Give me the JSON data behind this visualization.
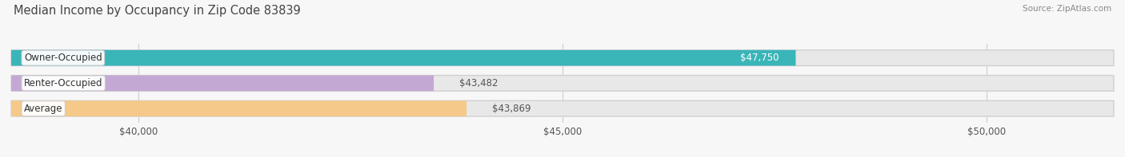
{
  "title": "Median Income by Occupancy in Zip Code 83839",
  "source": "Source: ZipAtlas.com",
  "categories": [
    "Owner-Occupied",
    "Renter-Occupied",
    "Average"
  ],
  "values": [
    47750,
    43482,
    43869
  ],
  "bar_colors": [
    "#3ab5b8",
    "#c4a8d4",
    "#f5c98a"
  ],
  "bar_bg_colors": [
    "#e8e8e8",
    "#e8e8e8",
    "#e8e8e8"
  ],
  "value_labels": [
    "$47,750",
    "$43,482",
    "$43,869"
  ],
  "value_label_colors": [
    "#ffffff",
    "#555555",
    "#555555"
  ],
  "x_min": 38500,
  "x_max": 51500,
  "x_ticks": [
    40000,
    45000,
    50000
  ],
  "x_tick_labels": [
    "$40,000",
    "$45,000",
    "$50,000"
  ],
  "background_color": "#f7f7f7",
  "title_fontsize": 10.5,
  "label_fontsize": 8.5,
  "value_fontsize": 8.5,
  "tick_fontsize": 8.5,
  "bar_height": 0.62,
  "bar_gap": 0.18,
  "label_box_color": "#ffffff",
  "label_box_edge": "#cccccc"
}
